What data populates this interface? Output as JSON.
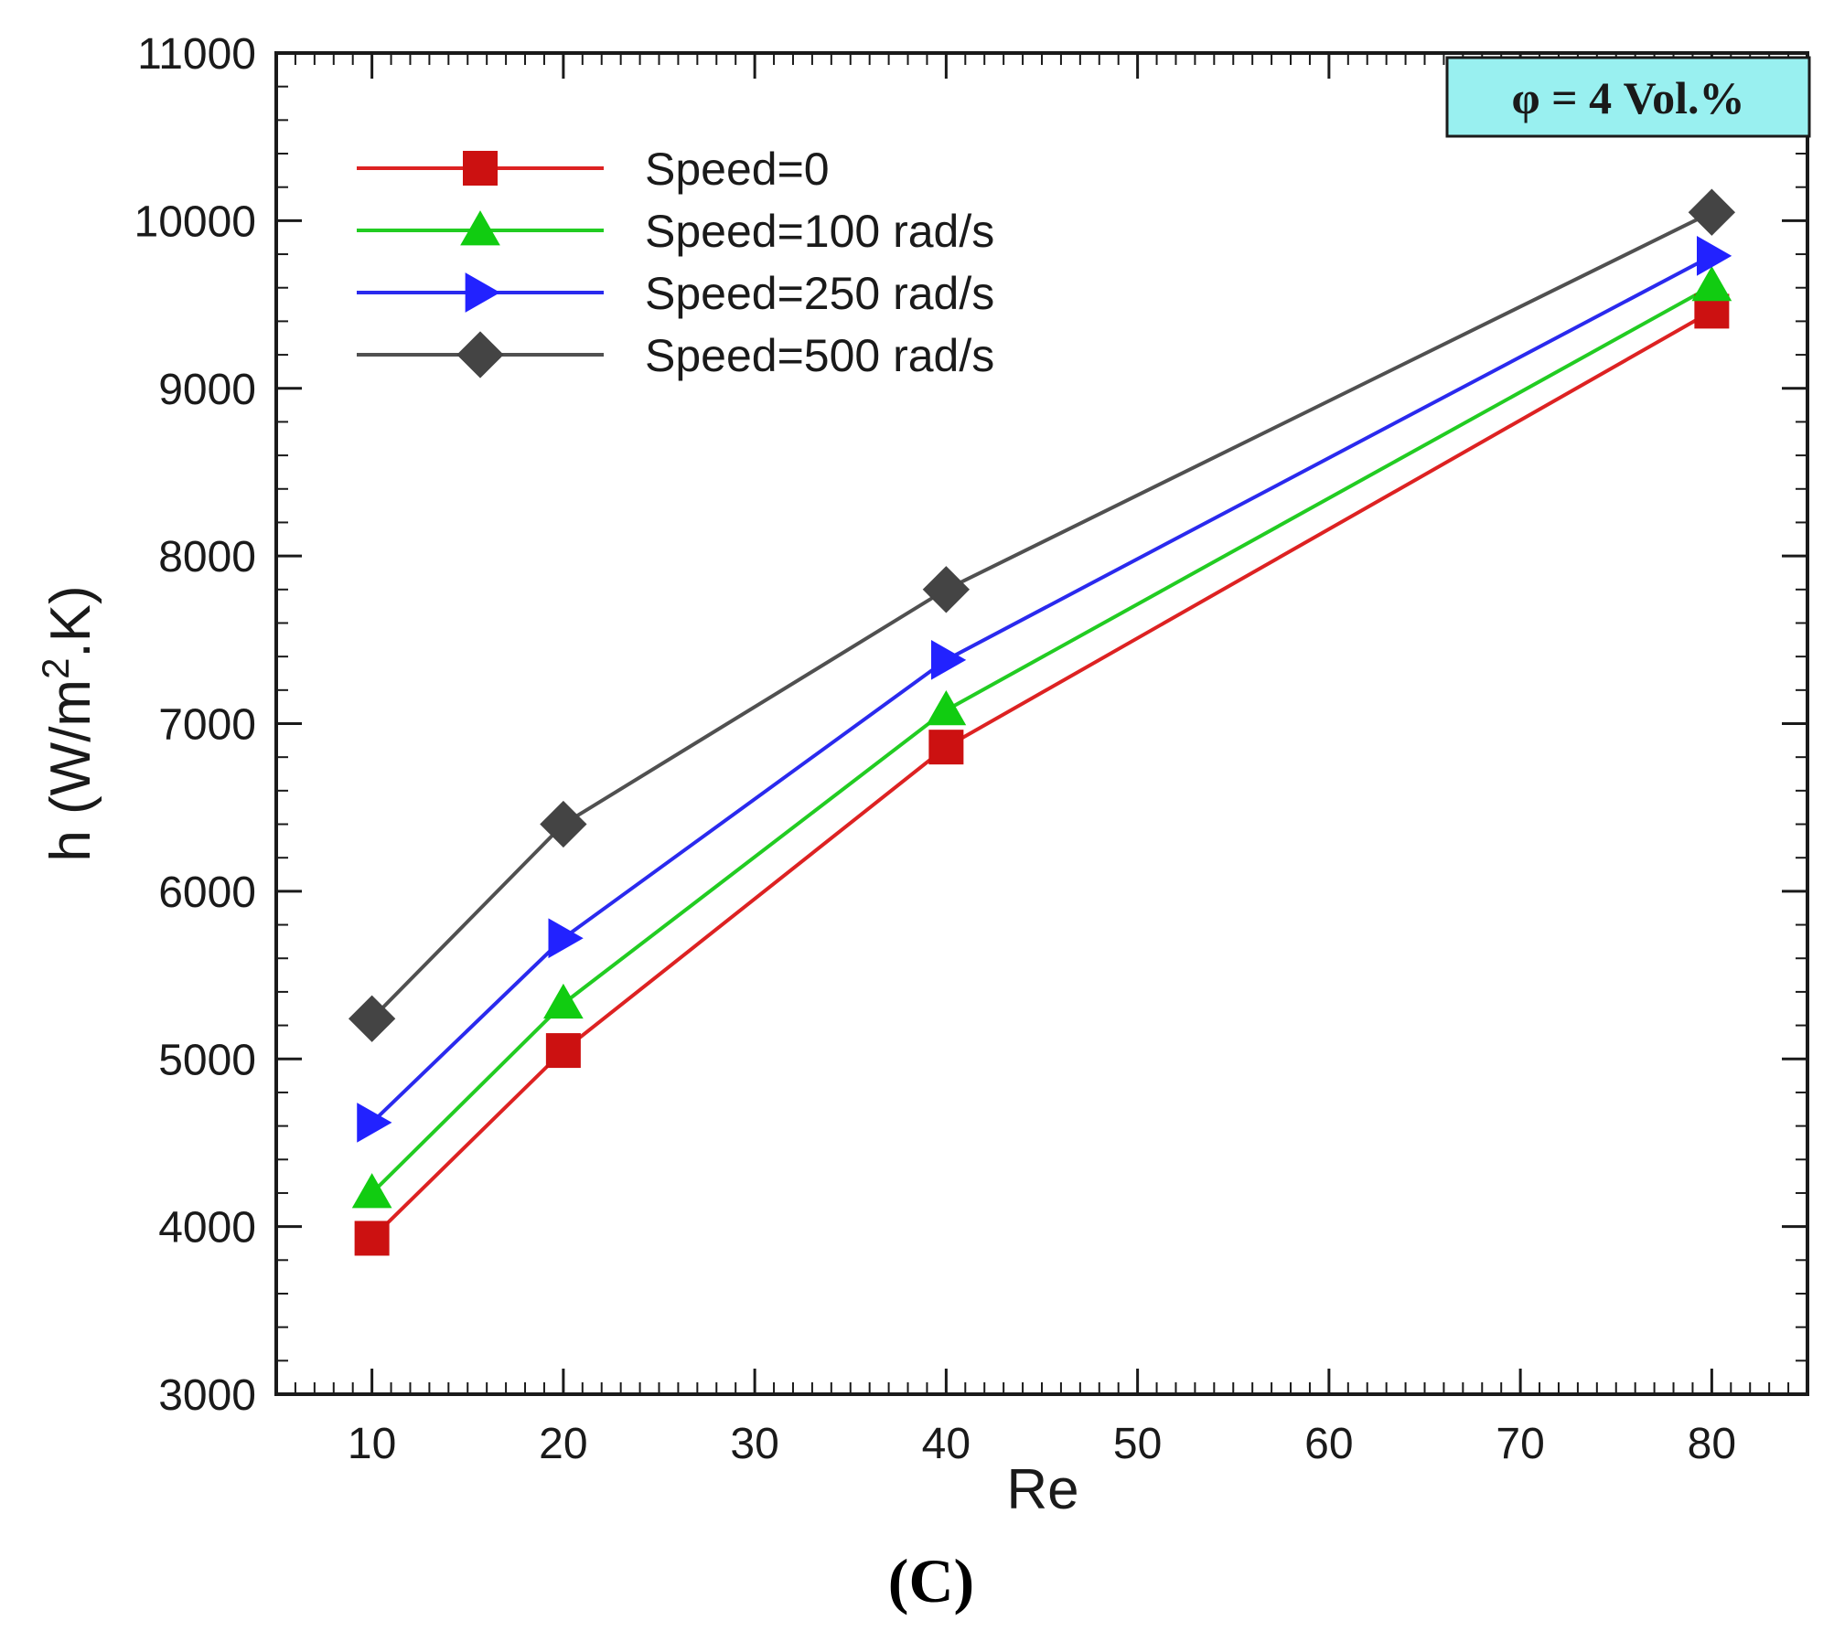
{
  "chart_data": {
    "type": "line",
    "title": "",
    "xlabel": "Re",
    "ylabel": "h (W/m",
    "ylabel_superscript": "2",
    "ylabel_suffix": ".K)",
    "xlim": [
      5,
      85
    ],
    "ylim": [
      3000,
      11000
    ],
    "x_ticks": [
      10,
      20,
      30,
      40,
      50,
      60,
      70,
      80
    ],
    "y_ticks": [
      3000,
      4000,
      5000,
      6000,
      7000,
      8000,
      9000,
      10000,
      11000
    ],
    "x_minor_step": 1,
    "y_minor_step": 200,
    "grid": false,
    "legend_position": "top-left",
    "annotation": "φ = 4 Vol.%",
    "annotation_position": "top-right",
    "annotation_background": "#99f0f0",
    "panel_label": "(C)",
    "x": [
      10,
      20,
      40,
      80
    ],
    "series": [
      {
        "name": "Speed=0",
        "values": [
          3930,
          5050,
          6860,
          9460
        ],
        "color": "#dd2222",
        "marker_color": "#cc1111",
        "marker": "square"
      },
      {
        "name": "Speed=100 rad/s",
        "values": [
          4200,
          5330,
          7080,
          9610
        ],
        "color": "#22cc22",
        "marker_color": "#11cc11",
        "marker": "triangle-up"
      },
      {
        "name": "Speed=250 rad/s",
        "values": [
          4620,
          5720,
          7380,
          9790
        ],
        "color": "#2a2aee",
        "marker_color": "#2222ff",
        "marker": "triangle-right"
      },
      {
        "name": "Speed=500 rad/s",
        "values": [
          5240,
          6400,
          7800,
          10050
        ],
        "color": "#505050",
        "marker_color": "#444444",
        "marker": "diamond"
      }
    ]
  }
}
